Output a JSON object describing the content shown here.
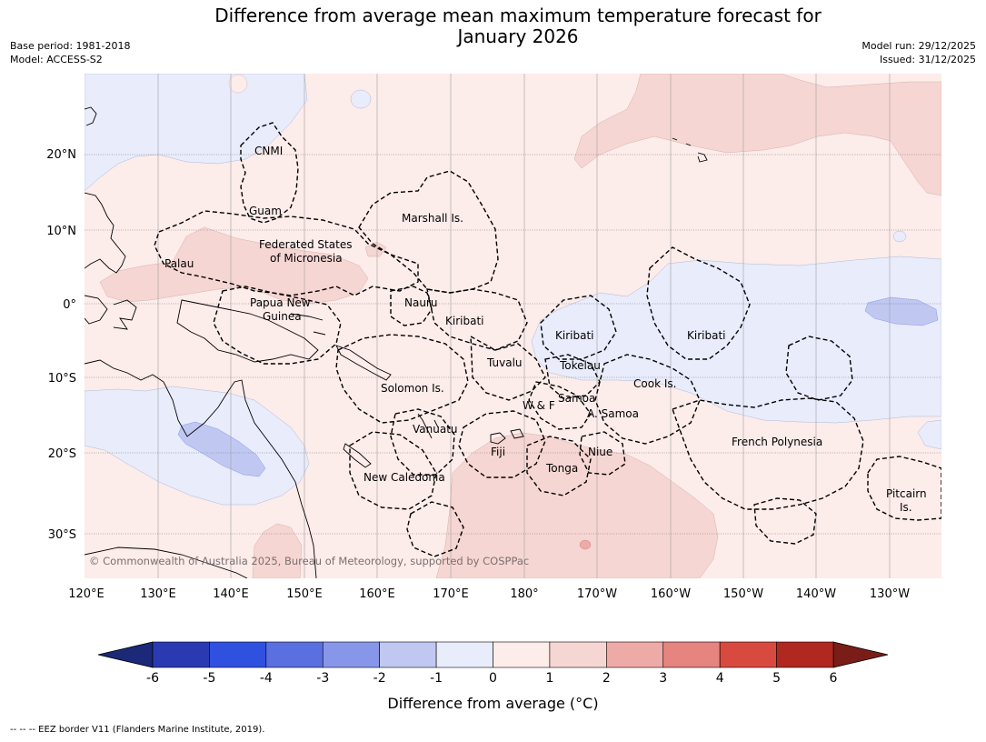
{
  "header": {
    "title_line1": "Difference from average mean maximum temperature forecast for",
    "title_line2": "January 2026",
    "base_period": "Base period: 1981-2018",
    "model": "Model: ACCESS-S2",
    "model_run": "Model run: 29/12/2025",
    "issued": "Issued: 31/12/2025"
  },
  "axes": {
    "lon_labels": [
      "120°E",
      "130°E",
      "140°E",
      "150°E",
      "160°E",
      "170°E",
      "180°",
      "170°W",
      "160°W",
      "150°W",
      "140°W",
      "130°W"
    ],
    "lat_labels": [
      "20°N",
      "10°N",
      "0°",
      "10°S",
      "20°S",
      "30°S"
    ]
  },
  "places": {
    "cnmi": "CNMI",
    "guam": "Guam",
    "marshall": "Marshall Is.",
    "fsm_1": "Federated States",
    "fsm_2": "of Micronesia",
    "palau": "Palau",
    "png_1": "Papua New",
    "png_2": "Guinea",
    "nauru": "Nauru",
    "kiribati_w": "Kiribati",
    "kiribati_c": "Kiribati",
    "kiribati_e": "Kiribati",
    "tuvalu": "Tuvalu",
    "tokelau": "Tokelau",
    "cook": "Cook Is.",
    "solomon": "Solomon Is.",
    "samoa": "Samoa",
    "wf": "W & F",
    "asamoa": "A. Samoa",
    "vanuatu": "Vanuatu",
    "fiji": "Fiji",
    "niue": "Niue",
    "tonga": "Tonga",
    "newcal": "New Caledonia",
    "fp": "French Polynesia",
    "pitcairn_1": "Pitcairn",
    "pitcairn_2": "Is."
  },
  "copyright": "© Commonwealth of Australia 2025, Bureau of Meteorology, supported by COSPPac",
  "colorbar": {
    "ticks": [
      "-6",
      "-5",
      "-4",
      "-3",
      "-2",
      "-1",
      "0",
      "1",
      "2",
      "3",
      "4",
      "5",
      "6"
    ],
    "colors": [
      "#2a3ab0",
      "#3050e0",
      "#5a70e0",
      "#8896ea",
      "#c0c8f2",
      "#e8ecfb",
      "#fcecea",
      "#f6d6d2",
      "#eeaaa6",
      "#e68480",
      "#d84a40",
      "#b02820"
    ],
    "end_low": "#1c2878",
    "end_high": "#7a1c18",
    "label": "Difference from average (°C)"
  },
  "footer": {
    "legend_text": "--  --  -- EEZ border V11 (Flanders Marine Institute, 2019)."
  }
}
